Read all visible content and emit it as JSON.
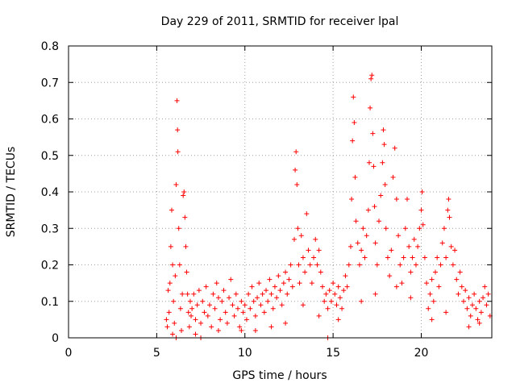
{
  "chart_data": {
    "type": "scatter",
    "title": "Day 229 of 2011, SRMTID for receiver lpal",
    "xlabel": "GPS time / hours",
    "ylabel": "SRMTID / TECUs",
    "xlim": [
      0,
      24
    ],
    "ylim": [
      0,
      0.8
    ],
    "xticks": [
      0,
      5,
      10,
      15,
      20
    ],
    "yticks": [
      0,
      0.1,
      0.2,
      0.3,
      0.4,
      0.5,
      0.6,
      0.7,
      0.8
    ],
    "xtick_labels": [
      "0",
      "5",
      "10",
      "15",
      "20"
    ],
    "ytick_labels": [
      "0",
      "0.1",
      "0.2",
      "0.3",
      "0.4",
      "0.5",
      "0.6",
      "0.7",
      "0.8"
    ],
    "grid": true,
    "marker": "plus",
    "color": "#ff0000",
    "series": [
      {
        "name": "SRMTID",
        "points": [
          [
            5.55,
            0.05
          ],
          [
            5.6,
            0.03
          ],
          [
            5.65,
            0.13
          ],
          [
            5.7,
            0.07
          ],
          [
            5.75,
            0.15
          ],
          [
            5.8,
            0.25
          ],
          [
            5.85,
            0.35
          ],
          [
            5.9,
            0.2
          ],
          [
            5.95,
            0.1
          ],
          [
            6.0,
            0.04
          ],
          [
            6.05,
            0.17
          ],
          [
            6.1,
            0.42
          ],
          [
            6.15,
            0.65
          ],
          [
            6.18,
            0.57
          ],
          [
            6.2,
            0.51
          ],
          [
            6.25,
            0.3
          ],
          [
            6.3,
            0.2
          ],
          [
            6.35,
            0.08
          ],
          [
            6.4,
            0.02
          ],
          [
            6.45,
            0.12
          ],
          [
            6.5,
            0.39
          ],
          [
            6.55,
            0.4
          ],
          [
            6.6,
            0.33
          ],
          [
            6.65,
            0.25
          ],
          [
            6.7,
            0.18
          ],
          [
            6.75,
            0.12
          ],
          [
            6.8,
            0.07
          ],
          [
            6.85,
            0.03
          ],
          [
            6.9,
            0.1
          ],
          [
            6.95,
            0.06
          ],
          [
            7.0,
            0.08
          ],
          [
            7.1,
            0.12
          ],
          [
            7.2,
            0.05
          ],
          [
            7.3,
            0.09
          ],
          [
            7.4,
            0.13
          ],
          [
            7.5,
            0.04
          ],
          [
            7.6,
            0.1
          ],
          [
            7.7,
            0.07
          ],
          [
            7.8,
            0.14
          ],
          [
            7.9,
            0.06
          ],
          [
            8.0,
            0.09
          ],
          [
            8.1,
            0.03
          ],
          [
            8.2,
            0.12
          ],
          [
            8.3,
            0.08
          ],
          [
            8.4,
            0.15
          ],
          [
            8.5,
            0.11
          ],
          [
            8.6,
            0.05
          ],
          [
            8.7,
            0.1
          ],
          [
            8.8,
            0.13
          ],
          [
            8.9,
            0.07
          ],
          [
            9.0,
            0.04
          ],
          [
            9.1,
            0.11
          ],
          [
            9.2,
            0.16
          ],
          [
            9.3,
            0.09
          ],
          [
            9.4,
            0.06
          ],
          [
            9.5,
            0.12
          ],
          [
            9.6,
            0.08
          ],
          [
            9.7,
            0.03
          ],
          [
            9.8,
            0.1
          ],
          [
            9.9,
            0.07
          ],
          [
            10.0,
            0.09
          ],
          [
            10.1,
            0.05
          ],
          [
            10.2,
            0.12
          ],
          [
            10.3,
            0.08
          ],
          [
            10.4,
            0.14
          ],
          [
            10.5,
            0.1
          ],
          [
            10.6,
            0.06
          ],
          [
            10.7,
            0.11
          ],
          [
            10.8,
            0.15
          ],
          [
            10.9,
            0.09
          ],
          [
            11.0,
            0.12
          ],
          [
            11.1,
            0.07
          ],
          [
            11.2,
            0.13
          ],
          [
            11.3,
            0.1
          ],
          [
            11.4,
            0.16
          ],
          [
            11.5,
            0.12
          ],
          [
            11.6,
            0.08
          ],
          [
            11.7,
            0.14
          ],
          [
            11.8,
            0.11
          ],
          [
            11.9,
            0.17
          ],
          [
            12.0,
            0.13
          ],
          [
            12.1,
            0.09
          ],
          [
            12.2,
            0.15
          ],
          [
            12.3,
            0.18
          ],
          [
            12.4,
            0.12
          ],
          [
            12.5,
            0.16
          ],
          [
            12.6,
            0.2
          ],
          [
            12.7,
            0.14
          ],
          [
            12.8,
            0.27
          ],
          [
            12.85,
            0.46
          ],
          [
            12.9,
            0.51
          ],
          [
            12.95,
            0.42
          ],
          [
            13.0,
            0.3
          ],
          [
            13.05,
            0.2
          ],
          [
            13.1,
            0.15
          ],
          [
            13.2,
            0.28
          ],
          [
            13.3,
            0.22
          ],
          [
            13.4,
            0.18
          ],
          [
            13.5,
            0.34
          ],
          [
            13.6,
            0.24
          ],
          [
            13.7,
            0.2
          ],
          [
            13.8,
            0.15
          ],
          [
            13.9,
            0.22
          ],
          [
            14.0,
            0.27
          ],
          [
            14.1,
            0.2
          ],
          [
            14.2,
            0.24
          ],
          [
            14.3,
            0.18
          ],
          [
            14.4,
            0.14
          ],
          [
            14.5,
            0.1
          ],
          [
            14.6,
            0.12
          ],
          [
            14.7,
            0.08
          ],
          [
            14.8,
            0.13
          ],
          [
            14.9,
            0.1
          ],
          [
            15.0,
            0.15
          ],
          [
            15.1,
            0.12
          ],
          [
            15.2,
            0.09
          ],
          [
            15.3,
            0.14
          ],
          [
            15.4,
            0.11
          ],
          [
            15.5,
            0.08
          ],
          [
            15.6,
            0.13
          ],
          [
            15.7,
            0.17
          ],
          [
            15.8,
            0.14
          ],
          [
            15.9,
            0.2
          ],
          [
            16.0,
            0.25
          ],
          [
            16.05,
            0.38
          ],
          [
            16.1,
            0.54
          ],
          [
            16.15,
            0.66
          ],
          [
            16.2,
            0.59
          ],
          [
            16.25,
            0.44
          ],
          [
            16.3,
            0.32
          ],
          [
            16.4,
            0.26
          ],
          [
            16.5,
            0.2
          ],
          [
            16.6,
            0.24
          ],
          [
            16.7,
            0.3
          ],
          [
            16.8,
            0.22
          ],
          [
            16.9,
            0.28
          ],
          [
            17.0,
            0.35
          ],
          [
            17.05,
            0.48
          ],
          [
            17.1,
            0.63
          ],
          [
            17.15,
            0.71
          ],
          [
            17.2,
            0.72
          ],
          [
            17.25,
            0.56
          ],
          [
            17.3,
            0.47
          ],
          [
            17.35,
            0.36
          ],
          [
            17.4,
            0.26
          ],
          [
            17.5,
            0.2
          ],
          [
            17.6,
            0.32
          ],
          [
            17.7,
            0.39
          ],
          [
            17.8,
            0.48
          ],
          [
            17.85,
            0.57
          ],
          [
            17.9,
            0.53
          ],
          [
            17.95,
            0.42
          ],
          [
            18.0,
            0.3
          ],
          [
            18.1,
            0.22
          ],
          [
            18.2,
            0.17
          ],
          [
            18.3,
            0.24
          ],
          [
            18.4,
            0.44
          ],
          [
            18.5,
            0.52
          ],
          [
            18.6,
            0.38
          ],
          [
            18.7,
            0.28
          ],
          [
            18.8,
            0.2
          ],
          [
            18.9,
            0.15
          ],
          [
            19.0,
            0.22
          ],
          [
            19.1,
            0.3
          ],
          [
            19.2,
            0.38
          ],
          [
            19.3,
            0.25
          ],
          [
            19.4,
            0.18
          ],
          [
            19.5,
            0.22
          ],
          [
            19.6,
            0.27
          ],
          [
            19.7,
            0.2
          ],
          [
            19.8,
            0.25
          ],
          [
            19.9,
            0.3
          ],
          [
            20.0,
            0.35
          ],
          [
            20.05,
            0.4
          ],
          [
            20.1,
            0.31
          ],
          [
            20.2,
            0.22
          ],
          [
            20.3,
            0.15
          ],
          [
            20.4,
            0.08
          ],
          [
            20.5,
            0.12
          ],
          [
            20.6,
            0.16
          ],
          [
            20.7,
            0.1
          ],
          [
            20.8,
            0.18
          ],
          [
            20.9,
            0.22
          ],
          [
            21.0,
            0.14
          ],
          [
            21.1,
            0.2
          ],
          [
            21.2,
            0.26
          ],
          [
            21.3,
            0.3
          ],
          [
            21.4,
            0.22
          ],
          [
            21.5,
            0.35
          ],
          [
            21.55,
            0.38
          ],
          [
            21.6,
            0.33
          ],
          [
            21.7,
            0.25
          ],
          [
            21.8,
            0.2
          ],
          [
            21.9,
            0.24
          ],
          [
            22.0,
            0.16
          ],
          [
            22.1,
            0.12
          ],
          [
            22.2,
            0.18
          ],
          [
            22.3,
            0.14
          ],
          [
            22.4,
            0.1
          ],
          [
            22.5,
            0.13
          ],
          [
            22.6,
            0.08
          ],
          [
            22.7,
            0.11
          ],
          [
            22.8,
            0.06
          ],
          [
            22.9,
            0.09
          ],
          [
            23.0,
            0.12
          ],
          [
            23.1,
            0.08
          ],
          [
            23.2,
            0.05
          ],
          [
            23.3,
            0.1
          ],
          [
            23.4,
            0.07
          ],
          [
            23.5,
            0.11
          ],
          [
            23.6,
            0.14
          ],
          [
            23.7,
            0.09
          ],
          [
            23.8,
            0.12
          ],
          [
            23.9,
            0.06
          ],
          [
            14.7,
            0.0
          ],
          [
            6.1,
            0.0
          ],
          [
            7.5,
            0.0
          ],
          [
            9.8,
            0.02
          ],
          [
            12.3,
            0.04
          ],
          [
            15.3,
            0.05
          ],
          [
            16.6,
            0.1
          ],
          [
            17.4,
            0.12
          ],
          [
            18.6,
            0.14
          ],
          [
            19.4,
            0.11
          ],
          [
            20.6,
            0.05
          ],
          [
            21.4,
            0.07
          ],
          [
            22.7,
            0.03
          ],
          [
            23.3,
            0.04
          ],
          [
            8.5,
            0.02
          ],
          [
            11.5,
            0.03
          ],
          [
            13.3,
            0.09
          ],
          [
            14.2,
            0.06
          ],
          [
            10.6,
            0.02
          ],
          [
            7.2,
            0.01
          ],
          [
            5.9,
            0.01
          ]
        ]
      }
    ]
  }
}
